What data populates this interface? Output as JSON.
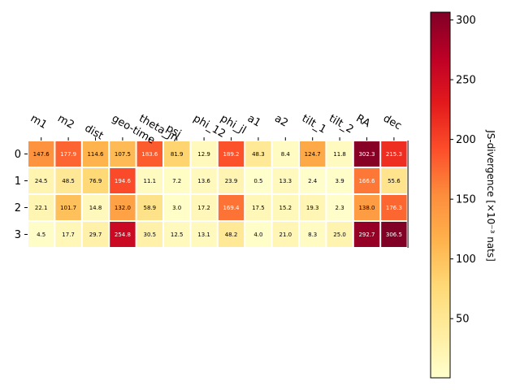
{
  "chart_data": {
    "type": "heatmap",
    "title": "",
    "columns": [
      "m1",
      "m2",
      "dist",
      "geo-time",
      "theta_jn",
      "psi",
      "phi_12",
      "phi_jl",
      "a1",
      "a2",
      "tilt_1",
      "tilt_2",
      "RA",
      "dec"
    ],
    "rows": [
      "0",
      "1",
      "2",
      "3"
    ],
    "values": [
      [
        147.6,
        177.9,
        114.6,
        107.5,
        183.6,
        81.9,
        12.9,
        189.2,
        48.3,
        8.4,
        124.7,
        11.8,
        302.3,
        215.3
      ],
      [
        24.5,
        48.5,
        76.9,
        194.6,
        11.1,
        7.2,
        13.6,
        23.9,
        0.5,
        13.3,
        2.4,
        3.9,
        166.6,
        55.6
      ],
      [
        22.1,
        101.7,
        14.8,
        132.0,
        58.9,
        3.0,
        17.2,
        169.4,
        17.5,
        15.2,
        19.3,
        2.3,
        138.0,
        176.3
      ],
      [
        4.5,
        17.7,
        29.7,
        254.8,
        30.5,
        12.5,
        13.1,
        48.2,
        4.0,
        21.0,
        8.3,
        25.0,
        292.7,
        306.5
      ]
    ],
    "colormap": "YlOrRd",
    "vmin": 0.5,
    "vmax": 306.5,
    "colorbar": {
      "label": "JS-divergence [×10⁻³ nats]",
      "ticks": [
        50,
        100,
        150,
        200,
        250,
        300
      ]
    },
    "grid": false
  }
}
